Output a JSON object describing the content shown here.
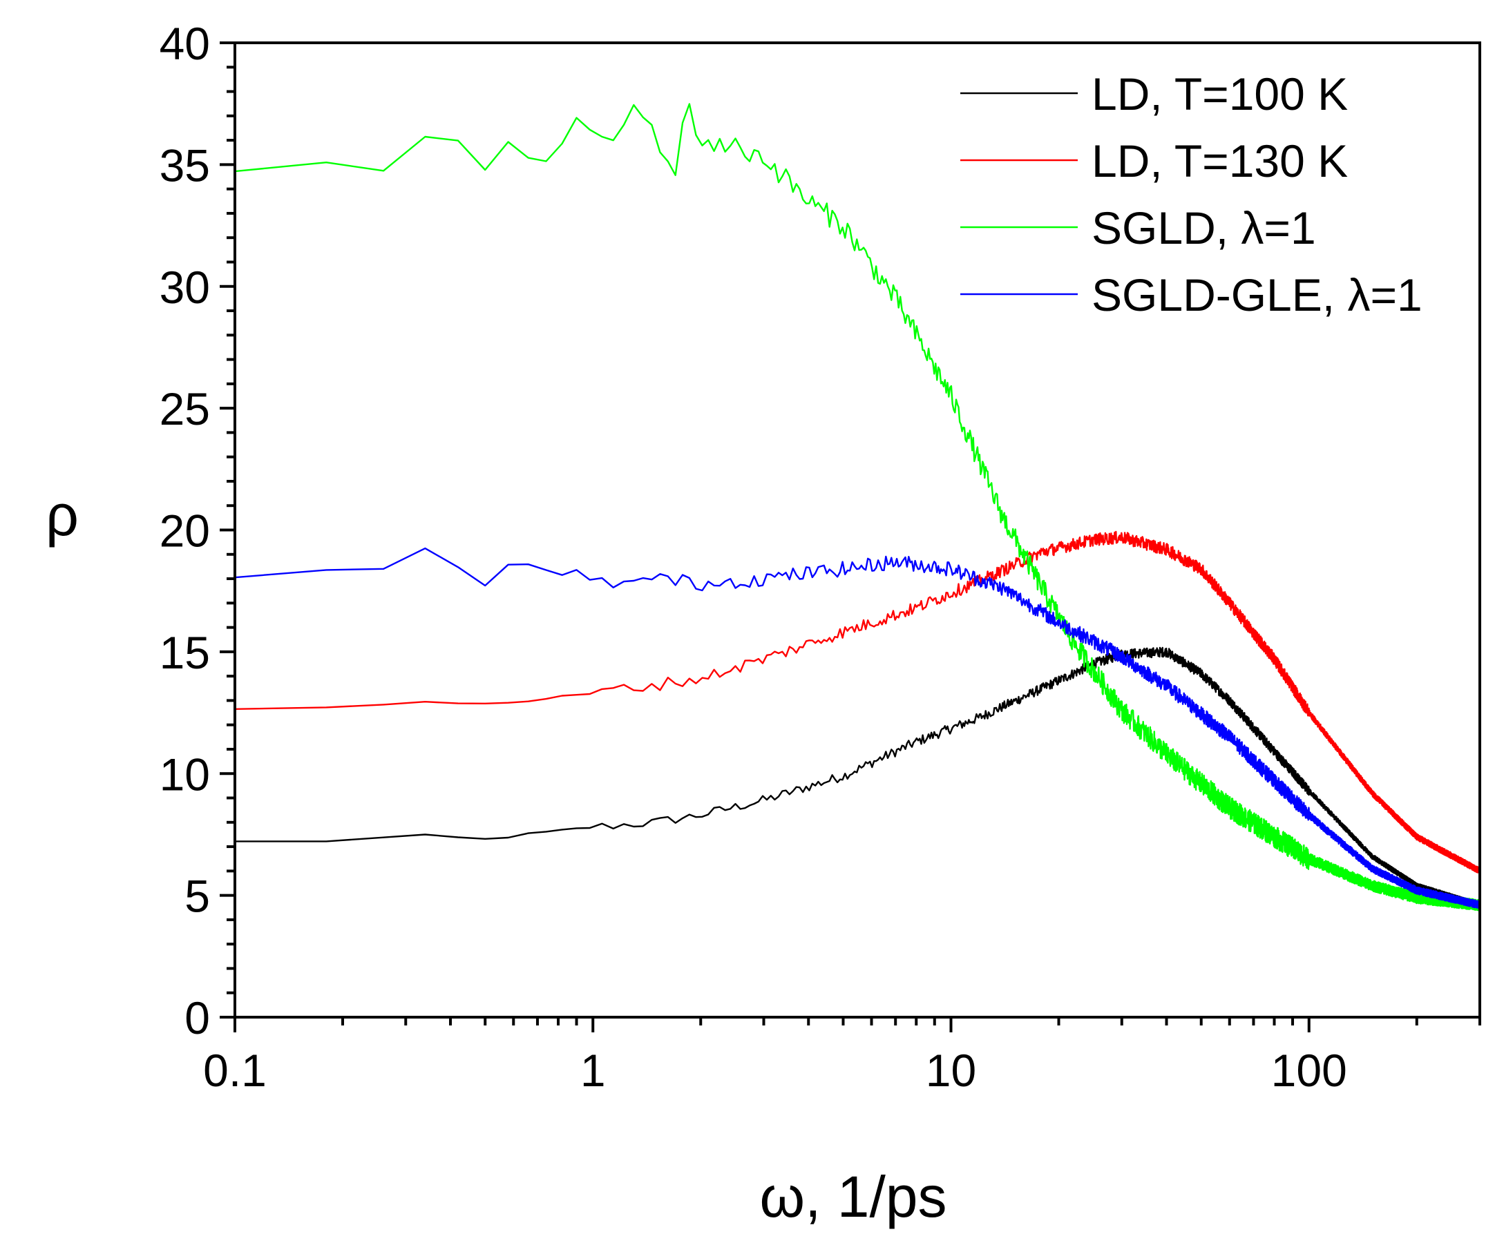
{
  "chart_data": {
    "type": "line",
    "title": "",
    "xlabel": "ω, 1/ps",
    "ylabel": "ρ",
    "xscale": "log",
    "xlim": [
      0.1,
      300
    ],
    "ylim": [
      0,
      40
    ],
    "x_ticks": [
      0.1,
      1,
      10,
      100
    ],
    "x_tick_labels": [
      "0.1",
      "1",
      "10",
      "100"
    ],
    "y_ticks": [
      0,
      5,
      10,
      15,
      20,
      25,
      30,
      35,
      40
    ],
    "y_tick_labels": [
      "0",
      "5",
      "10",
      "15",
      "20",
      "25",
      "30",
      "35",
      "40"
    ],
    "legend_position": "top-right",
    "grid": false,
    "series": [
      {
        "name": "LD, T=100 K",
        "color": "#000000",
        "noise": 0.2,
        "points": [
          [
            0.1,
            7.2
          ],
          [
            0.16,
            7.2
          ],
          [
            0.25,
            7.35
          ],
          [
            0.33,
            7.45
          ],
          [
            0.5,
            7.3
          ],
          [
            0.7,
            7.55
          ],
          [
            1.0,
            7.8
          ],
          [
            1.5,
            8.0
          ],
          [
            2.0,
            8.3
          ],
          [
            3.0,
            8.9
          ],
          [
            5.0,
            9.9
          ],
          [
            8.0,
            11.3
          ],
          [
            12.0,
            12.3
          ],
          [
            18.0,
            13.5
          ],
          [
            25.0,
            14.5
          ],
          [
            30.0,
            14.9
          ],
          [
            40.0,
            15.0
          ],
          [
            50.0,
            14.1
          ],
          [
            60.0,
            13.0
          ],
          [
            80.0,
            10.9
          ],
          [
            100.0,
            9.3
          ],
          [
            150.0,
            6.6
          ],
          [
            200.0,
            5.4
          ],
          [
            300.0,
            4.6
          ]
        ]
      },
      {
        "name": "LD, T=130 K",
        "color": "#ff0000",
        "noise": 0.25,
        "points": [
          [
            0.1,
            12.7
          ],
          [
            0.2,
            12.75
          ],
          [
            0.3,
            12.9
          ],
          [
            0.5,
            12.9
          ],
          [
            0.7,
            13.0
          ],
          [
            1.0,
            13.3
          ],
          [
            2.0,
            13.9
          ],
          [
            3.0,
            14.7
          ],
          [
            5.0,
            15.8
          ],
          [
            8.0,
            16.8
          ],
          [
            12.0,
            17.9
          ],
          [
            18.0,
            19.1
          ],
          [
            25.0,
            19.6
          ],
          [
            30.0,
            19.7
          ],
          [
            40.0,
            19.2
          ],
          [
            50.0,
            18.4
          ],
          [
            60.0,
            17.0
          ],
          [
            80.0,
            14.7
          ],
          [
            100.0,
            12.5
          ],
          [
            150.0,
            9.2
          ],
          [
            200.0,
            7.4
          ],
          [
            300.0,
            6.0
          ]
        ]
      },
      {
        "name": "SGLD, λ=1",
        "color": "#00ff00",
        "noise": 0.45,
        "points": [
          [
            0.1,
            34.6
          ],
          [
            0.16,
            35.4
          ],
          [
            0.25,
            34.5
          ],
          [
            0.33,
            36.2
          ],
          [
            0.4,
            36.15
          ],
          [
            0.5,
            34.8
          ],
          [
            0.6,
            36.3
          ],
          [
            0.7,
            34.8
          ],
          [
            0.8,
            35.5
          ],
          [
            0.9,
            36.8
          ],
          [
            1.1,
            35.9
          ],
          [
            1.3,
            37.2
          ],
          [
            1.5,
            36.3
          ],
          [
            1.7,
            34.5
          ],
          [
            1.8,
            37.6
          ],
          [
            2.0,
            36.0
          ],
          [
            2.5,
            35.7
          ],
          [
            3.0,
            35.3
          ],
          [
            4.0,
            33.5
          ],
          [
            5.0,
            32.5
          ],
          [
            7.0,
            29.5
          ],
          [
            10.0,
            25.5
          ],
          [
            14.0,
            20.5
          ],
          [
            18.0,
            17.6
          ],
          [
            22.0,
            15.4
          ],
          [
            30.0,
            12.6
          ],
          [
            40.0,
            10.8
          ],
          [
            60.0,
            8.6
          ],
          [
            100.0,
            6.5
          ],
          [
            150.0,
            5.4
          ],
          [
            200.0,
            4.9
          ],
          [
            300.0,
            4.6
          ]
        ]
      },
      {
        "name": "SGLD-GLE, λ=1",
        "color": "#0000ff",
        "noise": 0.3,
        "points": [
          [
            0.1,
            18.0
          ],
          [
            0.16,
            18.5
          ],
          [
            0.25,
            18.2
          ],
          [
            0.33,
            19.3
          ],
          [
            0.4,
            18.6
          ],
          [
            0.5,
            17.8
          ],
          [
            0.6,
            18.7
          ],
          [
            0.7,
            18.5
          ],
          [
            0.8,
            18.0
          ],
          [
            0.9,
            18.4
          ],
          [
            1.0,
            17.8
          ],
          [
            1.5,
            18.0
          ],
          [
            2.0,
            17.8
          ],
          [
            3.0,
            18.0
          ],
          [
            5.0,
            18.4
          ],
          [
            7.0,
            18.7
          ],
          [
            10.0,
            18.4
          ],
          [
            14.0,
            17.6
          ],
          [
            20.0,
            16.2
          ],
          [
            30.0,
            14.8
          ],
          [
            40.0,
            13.6
          ],
          [
            60.0,
            11.5
          ],
          [
            100.0,
            8.3
          ],
          [
            150.0,
            6.1
          ],
          [
            200.0,
            5.2
          ],
          [
            300.0,
            4.6
          ]
        ]
      }
    ]
  }
}
